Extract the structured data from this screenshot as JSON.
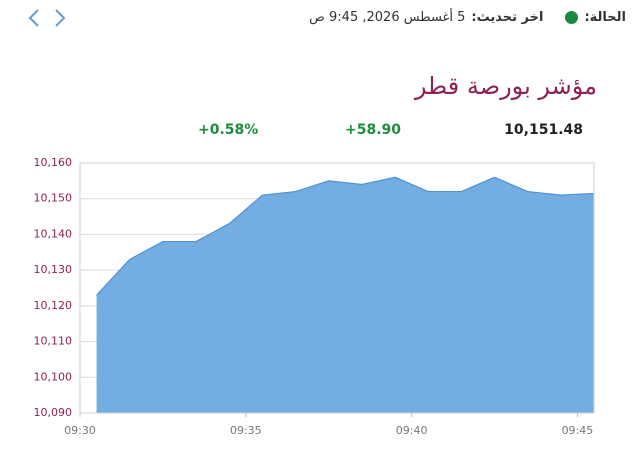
{
  "header": {
    "status_label": "الحالة:",
    "update_label": "اخر تحديث:",
    "update_time": "5 أغسطس 2026, 9:45 ص",
    "title": "مؤشر بورصة قطر",
    "last": "10,151.48",
    "change": "+58.90",
    "change_percent": "+0.58%"
  },
  "chart_data": {
    "type": "area",
    "color": "#4f91d3",
    "fill": "#74ade2",
    "grid": true,
    "x": [
      570.5,
      571.5,
      572.5,
      573.5,
      574.5,
      575.5,
      576.5,
      577.5,
      578.5,
      579.5,
      580.5,
      581.5,
      582.5,
      583.5,
      584.5,
      585.5
    ],
    "values": [
      10123,
      10133,
      10138,
      10138,
      10143,
      10151,
      10152,
      10155,
      10154,
      10156,
      10152,
      10152,
      10156,
      10152,
      10151,
      10151.48
    ],
    "xlim": [
      570,
      585.5
    ],
    "xticks": [
      {
        "value": 570,
        "label": "09:30"
      },
      {
        "value": 575,
        "label": "09:35"
      },
      {
        "value": 580,
        "label": "09:40"
      },
      {
        "value": 585,
        "label": "09:45"
      }
    ],
    "ylim": [
      10090,
      10160
    ],
    "yticks": [
      {
        "value": 10090,
        "label": "10,090"
      },
      {
        "value": 10100,
        "label": "10,100"
      },
      {
        "value": 10110,
        "label": "10,110"
      },
      {
        "value": 10120,
        "label": "10,120"
      },
      {
        "value": 10130,
        "label": "10,130"
      },
      {
        "value": 10140,
        "label": "10,140"
      },
      {
        "value": 10150,
        "label": "10,150"
      },
      {
        "value": 10160,
        "label": "10,160"
      }
    ]
  }
}
